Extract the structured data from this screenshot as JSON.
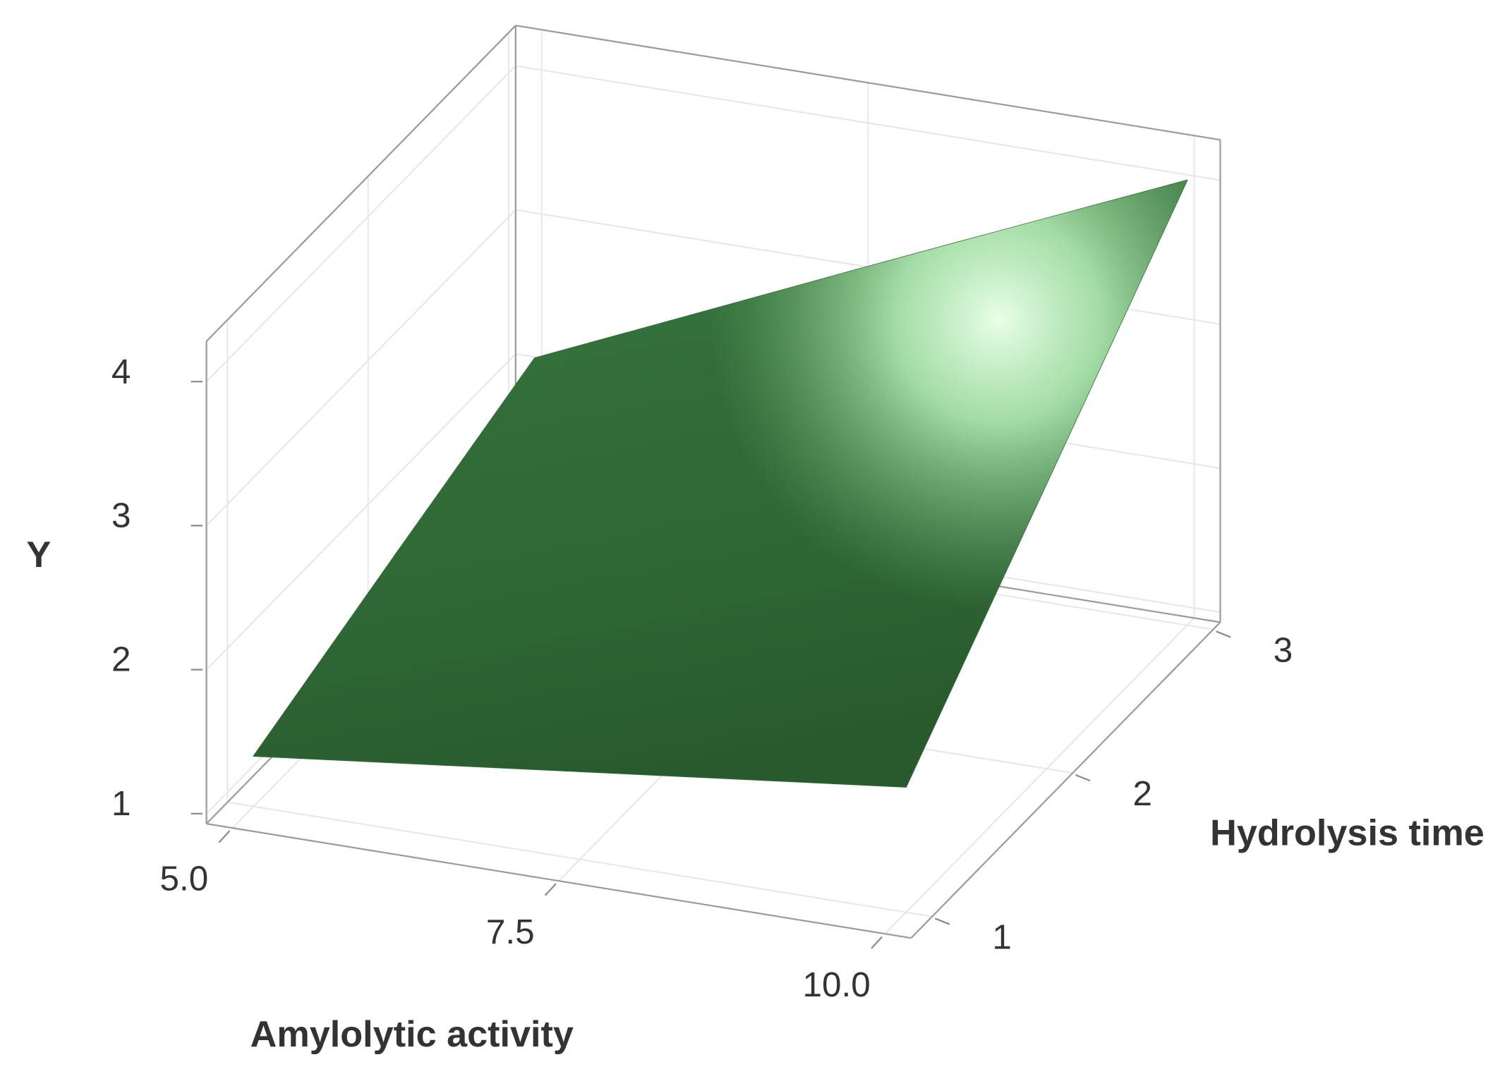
{
  "chart_data": {
    "type": "surface",
    "x_label": "Amylolytic activity",
    "y_label": "Hydrolysis time",
    "z_label": "Y",
    "x": [
      5,
      7.5,
      10
    ],
    "y": [
      1,
      2,
      3
    ],
    "z": [
      [
        1.28,
        1.54,
        1.8
      ],
      [
        1.67,
        2.29,
        2.91
      ],
      [
        2.05,
        3.04,
        4.02
      ]
    ],
    "color": "#33703a",
    "xlim": [
      4.8,
      10.2
    ],
    "ylim": [
      0.85,
      3.05
    ],
    "zlim": [
      0.93,
      4.28
    ],
    "xticks": [
      {
        "value": 5,
        "label": "5.0"
      },
      7.5,
      {
        "value": 10,
        "label": "10.0"
      }
    ],
    "yticks": [
      1,
      2,
      3
    ],
    "zticks": [
      1,
      2,
      3,
      4
    ],
    "grid": true
  }
}
